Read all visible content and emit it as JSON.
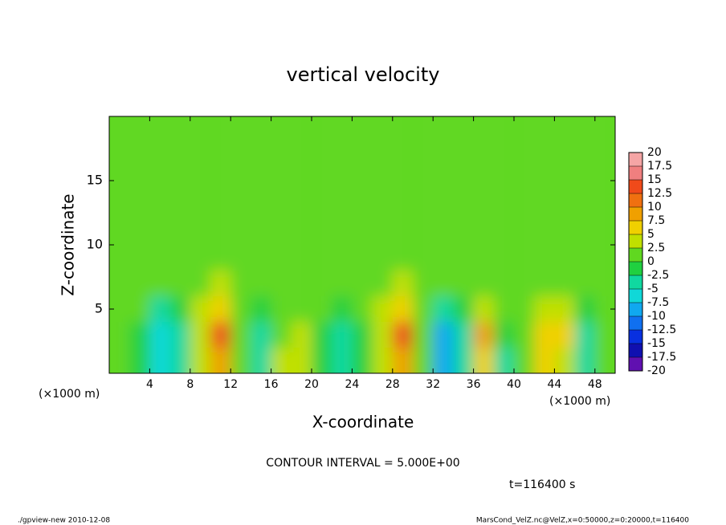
{
  "chart_data": {
    "type": "contour",
    "title": "vertical velocity",
    "x_label": "X-coordinate",
    "y_label": "Z-coordinate",
    "x_unit": "(×1000 m)",
    "y_unit": "(×1000 m)",
    "contour_note": "CONTOUR INTERVAL = 5.000E+00",
    "time_note": "t=116400 s",
    "footer_left": "./gpview-new  2010-12-08",
    "footer_right": "MarsCond_VelZ.nc@VelZ,x=0:50000,z=0:20000,t=116400",
    "xlim": [
      0,
      50
    ],
    "ylim": [
      0,
      20
    ],
    "xticks": [
      4,
      8,
      12,
      16,
      20,
      24,
      28,
      32,
      36,
      40,
      44,
      48
    ],
    "yticks": [
      5,
      10,
      15
    ],
    "x": [
      1,
      3,
      5,
      7,
      9,
      11,
      13,
      15,
      17,
      19,
      21,
      23,
      25,
      27,
      29,
      31,
      33,
      35,
      37,
      39,
      41,
      43,
      45,
      47,
      49
    ],
    "y": [
      1,
      3,
      5,
      7,
      9,
      11,
      13,
      15,
      17,
      19
    ],
    "z": [
      [
        1,
        -2,
        -6,
        -3,
        3,
        9,
        1,
        -3,
        3,
        4,
        -1,
        -4,
        -1,
        3,
        8,
        0,
        -10,
        -3,
        7,
        -3,
        1,
        5,
        3,
        -3,
        1
      ],
      [
        1,
        -2,
        -7,
        -3,
        4,
        13,
        2,
        -4,
        2,
        3,
        -2,
        -5,
        -1,
        4,
        13,
        0,
        -8,
        -3,
        8,
        -2,
        1,
        7,
        5,
        -4,
        1
      ],
      [
        2,
        1,
        -3,
        -1,
        3,
        7,
        2,
        -2,
        2,
        2,
        0,
        -2,
        1,
        3,
        6,
        1,
        -3,
        -1,
        3,
        0,
        1,
        3,
        3,
        -1,
        1
      ],
      [
        2,
        2,
        1,
        1,
        2,
        3,
        2,
        1,
        2,
        1,
        1,
        1,
        2,
        2,
        3,
        1,
        1,
        1,
        1,
        1,
        2,
        2,
        2,
        1,
        1
      ],
      [
        1,
        2,
        1,
        2,
        1,
        2,
        1,
        2,
        1,
        1,
        2,
        1,
        1,
        2,
        1,
        2,
        1,
        1,
        2,
        1,
        1,
        2,
        1,
        2,
        1
      ],
      [
        2,
        1,
        1,
        1,
        2,
        1,
        2,
        1,
        1,
        2,
        1,
        1,
        2,
        1,
        1,
        1,
        2,
        1,
        1,
        2,
        1,
        1,
        2,
        1,
        1
      ],
      [
        1,
        1,
        2,
        1,
        1,
        2,
        1,
        1,
        2,
        1,
        1,
        2,
        1,
        1,
        2,
        1,
        1,
        2,
        1,
        1,
        2,
        1,
        1,
        1,
        2
      ],
      [
        1,
        2,
        1,
        1,
        1,
        1,
        1,
        2,
        1,
        1,
        1,
        1,
        1,
        1,
        1,
        1,
        2,
        1,
        1,
        1,
        1,
        2,
        1,
        1,
        1
      ],
      [
        1,
        1,
        1,
        2,
        1,
        1,
        1,
        1,
        1,
        2,
        1,
        1,
        1,
        1,
        1,
        2,
        1,
        1,
        1,
        1,
        1,
        1,
        1,
        2,
        1
      ],
      [
        1,
        1,
        1,
        1,
        1,
        2,
        1,
        1,
        1,
        1,
        1,
        1,
        2,
        1,
        1,
        1,
        1,
        1,
        2,
        1,
        1,
        1,
        1,
        1,
        1
      ]
    ],
    "levels": [
      20,
      17.5,
      15,
      12.5,
      10,
      7.5,
      5,
      2.5,
      0,
      -2.5,
      -5,
      -7.5,
      -10,
      -12.5,
      -15,
      -17.5,
      -20
    ],
    "colors": [
      "#f5a5a5",
      "#f07f7f",
      "#f04a1a",
      "#f07010",
      "#f0a000",
      "#f0d000",
      "#c0e000",
      "#60d820",
      "#20d040",
      "#10d8a0",
      "#10d8d8",
      "#10a8f0",
      "#1070f0",
      "#0830e0",
      "#1010b0",
      "#6010b0"
    ]
  }
}
